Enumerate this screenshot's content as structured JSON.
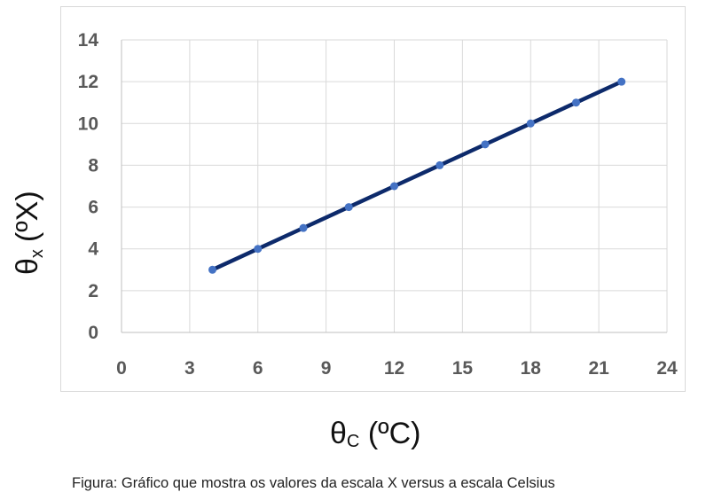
{
  "chart_data": {
    "type": "line",
    "xlabel_symbol": "θ",
    "xlabel_sub": "C",
    "xlabel_unit": "(ºC)",
    "ylabel_symbol": "θ",
    "ylabel_sub": "x",
    "ylabel_unit": "(ºX)",
    "x_ticks": [
      "0",
      "3",
      "6",
      "9",
      "12",
      "15",
      "18",
      "21",
      "24"
    ],
    "y_ticks": [
      "0",
      "2",
      "4",
      "6",
      "8",
      "10",
      "12",
      "14"
    ],
    "xlim": [
      0,
      24
    ],
    "ylim": [
      0,
      14
    ],
    "grid": true,
    "series": [
      {
        "x": [
          4,
          6,
          8,
          10,
          12,
          14,
          16,
          18,
          20,
          22
        ],
        "y": [
          3,
          4,
          5,
          6,
          7,
          8,
          9,
          10,
          11,
          12
        ],
        "line_color": "#0d2a6b",
        "marker_color": "#4472c4"
      }
    ]
  },
  "caption": "Figura: Gráfico que mostra os valores da escala X versus a escala Celsius"
}
